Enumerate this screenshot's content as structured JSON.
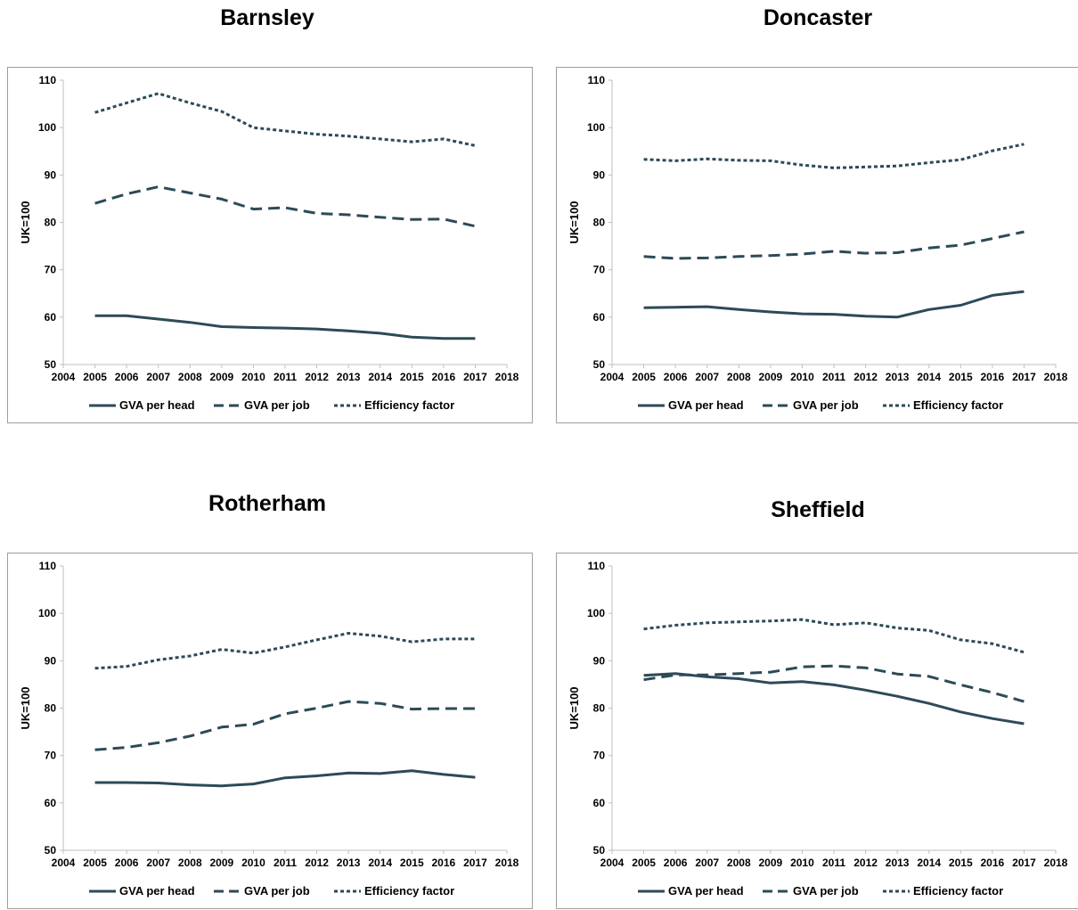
{
  "colors": {
    "line": "#2d4a58",
    "axis": "#bfbfbf",
    "frame": "#9e9e9e"
  },
  "chart_data": [
    {
      "type": "line",
      "title": "Barnsley",
      "ylabel": "UK=100",
      "xlabel": "",
      "xlim": [
        2004,
        2018
      ],
      "ylim": [
        50,
        110
      ],
      "xticks": [
        2004,
        2005,
        2006,
        2007,
        2008,
        2009,
        2010,
        2011,
        2012,
        2013,
        2014,
        2015,
        2016,
        2017,
        2018
      ],
      "yticks": [
        50,
        60,
        70,
        80,
        90,
        100,
        110
      ],
      "x": [
        2005,
        2006,
        2007,
        2008,
        2009,
        2010,
        2011,
        2012,
        2013,
        2014,
        2015,
        2016,
        2017
      ],
      "grid": false,
      "legend": "bottom",
      "series": [
        {
          "name": "GVA per head",
          "style": "solid",
          "values": [
            60.3,
            60.3,
            59.6,
            58.9,
            58.0,
            57.8,
            57.7,
            57.5,
            57.1,
            56.6,
            55.8,
            55.5,
            55.5
          ]
        },
        {
          "name": "GVA per job",
          "style": "dashed",
          "values": [
            84.0,
            86.0,
            87.5,
            86.2,
            84.9,
            82.8,
            83.1,
            81.9,
            81.6,
            81.1,
            80.6,
            80.7,
            79.2
          ]
        },
        {
          "name": "Efficiency factor",
          "style": "dotted",
          "values": [
            103.2,
            105.2,
            107.2,
            105.2,
            103.4,
            100.0,
            99.3,
            98.6,
            98.2,
            97.6,
            97.0,
            97.6,
            96.2
          ]
        }
      ]
    },
    {
      "type": "line",
      "title": "Doncaster",
      "ylabel": "UK=100",
      "xlabel": "",
      "xlim": [
        2004,
        2018
      ],
      "ylim": [
        50,
        110
      ],
      "xticks": [
        2004,
        2005,
        2006,
        2007,
        2008,
        2009,
        2010,
        2011,
        2012,
        2013,
        2014,
        2015,
        2016,
        2017,
        2018
      ],
      "yticks": [
        50,
        60,
        70,
        80,
        90,
        100,
        110
      ],
      "x": [
        2005,
        2006,
        2007,
        2008,
        2009,
        2010,
        2011,
        2012,
        2013,
        2014,
        2015,
        2016,
        2017
      ],
      "grid": false,
      "legend": "bottom",
      "series": [
        {
          "name": "GVA per head",
          "style": "solid",
          "values": [
            62.0,
            62.1,
            62.2,
            61.6,
            61.1,
            60.7,
            60.6,
            60.2,
            60.0,
            61.6,
            62.5,
            64.6,
            65.4
          ]
        },
        {
          "name": "GVA per job",
          "style": "dashed",
          "values": [
            72.8,
            72.4,
            72.5,
            72.8,
            73.0,
            73.3,
            73.9,
            73.5,
            73.6,
            74.6,
            75.2,
            76.6,
            78.0
          ]
        },
        {
          "name": "Efficiency factor",
          "style": "dotted",
          "values": [
            93.3,
            93.0,
            93.4,
            93.1,
            93.0,
            92.1,
            91.5,
            91.7,
            91.9,
            92.6,
            93.2,
            95.1,
            96.5
          ]
        }
      ]
    },
    {
      "type": "line",
      "title": "Rotherham",
      "ylabel": "UK=100",
      "xlabel": "",
      "xlim": [
        2004,
        2018
      ],
      "ylim": [
        50,
        110
      ],
      "xticks": [
        2004,
        2005,
        2006,
        2007,
        2008,
        2009,
        2010,
        2011,
        2012,
        2013,
        2014,
        2015,
        2016,
        2017,
        2018
      ],
      "yticks": [
        50,
        60,
        70,
        80,
        90,
        100,
        110
      ],
      "x": [
        2005,
        2006,
        2007,
        2008,
        2009,
        2010,
        2011,
        2012,
        2013,
        2014,
        2015,
        2016,
        2017
      ],
      "grid": false,
      "legend": "bottom",
      "series": [
        {
          "name": "GVA per head",
          "style": "solid",
          "values": [
            64.3,
            64.3,
            64.2,
            63.8,
            63.6,
            64.0,
            65.3,
            65.7,
            66.3,
            66.2,
            66.8,
            66.0,
            65.4
          ]
        },
        {
          "name": "GVA per job",
          "style": "dashed",
          "values": [
            71.2,
            71.7,
            72.7,
            74.1,
            76.0,
            76.6,
            78.8,
            80.0,
            81.4,
            81.0,
            79.8,
            79.9,
            79.9
          ]
        },
        {
          "name": "Efficiency factor",
          "style": "dotted",
          "values": [
            88.4,
            88.8,
            90.2,
            91.0,
            92.4,
            91.6,
            92.9,
            94.4,
            95.8,
            95.2,
            94.0,
            94.6,
            94.6
          ]
        }
      ]
    },
    {
      "type": "line",
      "title": "Sheffield",
      "ylabel": "UK=100",
      "xlabel": "",
      "xlim": [
        2004,
        2018
      ],
      "ylim": [
        50,
        110
      ],
      "xticks": [
        2004,
        2005,
        2006,
        2007,
        2008,
        2009,
        2010,
        2011,
        2012,
        2013,
        2014,
        2015,
        2016,
        2017,
        2018
      ],
      "yticks": [
        50,
        60,
        70,
        80,
        90,
        100,
        110
      ],
      "x": [
        2005,
        2006,
        2007,
        2008,
        2009,
        2010,
        2011,
        2012,
        2013,
        2014,
        2015,
        2016,
        2017
      ],
      "grid": false,
      "legend": "bottom",
      "series": [
        {
          "name": "GVA per head",
          "style": "solid",
          "values": [
            86.9,
            87.3,
            86.6,
            86.2,
            85.3,
            85.6,
            84.9,
            83.8,
            82.5,
            81.0,
            79.2,
            77.8,
            76.7
          ]
        },
        {
          "name": "GVA per job",
          "style": "dashed",
          "values": [
            86.0,
            87.0,
            87.0,
            87.3,
            87.6,
            88.7,
            88.9,
            88.5,
            87.2,
            86.7,
            84.9,
            83.3,
            81.4
          ]
        },
        {
          "name": "Efficiency factor",
          "style": "dotted",
          "values": [
            96.7,
            97.5,
            98.0,
            98.2,
            98.4,
            98.7,
            97.6,
            98.0,
            96.9,
            96.4,
            94.4,
            93.6,
            91.8
          ]
        }
      ]
    }
  ]
}
